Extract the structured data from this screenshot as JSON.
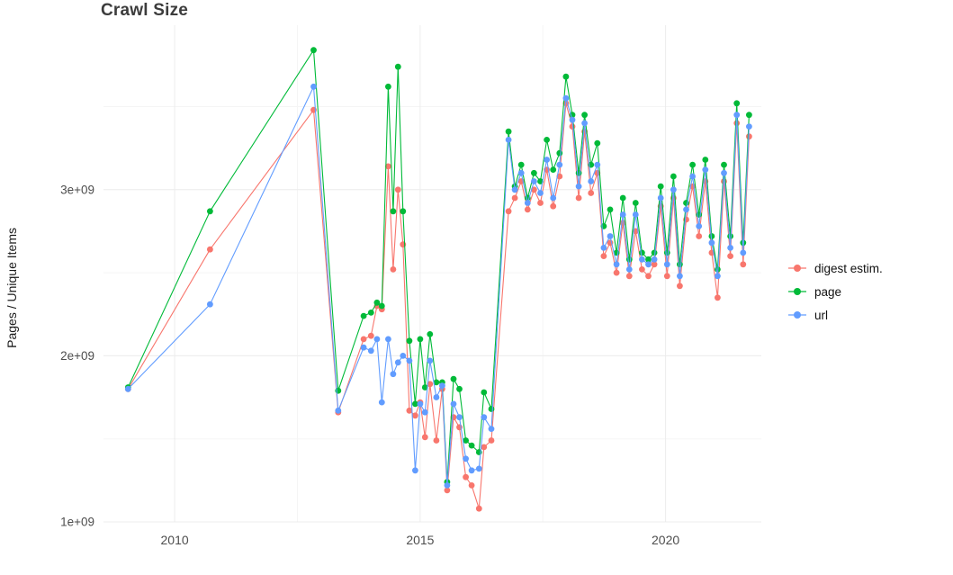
{
  "chart_data": {
    "type": "line",
    "title": "Crawl Size",
    "xlabel": "",
    "ylabel": "Pages / Unique Items",
    "y_unit": "values in billions (1e9)",
    "x_ticks": [
      2010,
      2015,
      2020
    ],
    "x_tick_labels": [
      "2010",
      "2015",
      "2020"
    ],
    "y_ticks": [
      1,
      2,
      3
    ],
    "y_tick_labels": [
      "1e+09",
      "2e+09",
      "3e+09"
    ],
    "xlim": [
      2008.55,
      2021.95
    ],
    "ylim": [
      1.0,
      3.99
    ],
    "grid": true,
    "grid_x_minor": [
      2012.5,
      2017.5
    ],
    "grid_y_minor": [
      1.5,
      2.5,
      3.5
    ],
    "legend_position": "right",
    "marker": "circle",
    "series": [
      {
        "name": "digest estim.",
        "color": "#F8766D",
        "points": [
          [
            2009.05,
            1.8
          ],
          [
            2010.72,
            2.64
          ],
          [
            2012.83,
            3.48
          ],
          [
            2013.33,
            1.66
          ],
          [
            2013.85,
            2.1
          ],
          [
            2014.0,
            2.12
          ],
          [
            2014.12,
            2.3
          ],
          [
            2014.22,
            2.28
          ],
          [
            2014.35,
            3.14
          ],
          [
            2014.45,
            2.52
          ],
          [
            2014.55,
            3.0
          ],
          [
            2014.65,
            2.67
          ],
          [
            2014.78,
            1.67
          ],
          [
            2014.9,
            1.64
          ],
          [
            2015.0,
            1.72
          ],
          [
            2015.1,
            1.51
          ],
          [
            2015.2,
            1.83
          ],
          [
            2015.33,
            1.49
          ],
          [
            2015.45,
            1.8
          ],
          [
            2015.55,
            1.19
          ],
          [
            2015.68,
            1.63
          ],
          [
            2015.8,
            1.57
          ],
          [
            2015.93,
            1.27
          ],
          [
            2016.05,
            1.22
          ],
          [
            2016.2,
            1.08
          ],
          [
            2016.3,
            1.45
          ],
          [
            2016.45,
            1.49
          ],
          [
            2016.8,
            2.87
          ],
          [
            2016.93,
            2.95
          ],
          [
            2017.06,
            3.05
          ],
          [
            2017.19,
            2.88
          ],
          [
            2017.32,
            3.0
          ],
          [
            2017.45,
            2.92
          ],
          [
            2017.58,
            3.12
          ],
          [
            2017.71,
            2.9
          ],
          [
            2017.84,
            3.08
          ],
          [
            2017.97,
            3.52
          ],
          [
            2018.1,
            3.38
          ],
          [
            2018.23,
            2.95
          ],
          [
            2018.35,
            3.35
          ],
          [
            2018.48,
            2.98
          ],
          [
            2018.61,
            3.1
          ],
          [
            2018.74,
            2.6
          ],
          [
            2018.87,
            2.68
          ],
          [
            2019.0,
            2.5
          ],
          [
            2019.13,
            2.8
          ],
          [
            2019.26,
            2.48
          ],
          [
            2019.39,
            2.75
          ],
          [
            2019.52,
            2.52
          ],
          [
            2019.65,
            2.48
          ],
          [
            2019.77,
            2.55
          ],
          [
            2019.9,
            2.9
          ],
          [
            2020.03,
            2.48
          ],
          [
            2020.16,
            2.95
          ],
          [
            2020.29,
            2.42
          ],
          [
            2020.42,
            2.82
          ],
          [
            2020.55,
            3.02
          ],
          [
            2020.68,
            2.72
          ],
          [
            2020.81,
            3.05
          ],
          [
            2020.94,
            2.62
          ],
          [
            2021.06,
            2.35
          ],
          [
            2021.19,
            3.05
          ],
          [
            2021.32,
            2.6
          ],
          [
            2021.45,
            3.4
          ],
          [
            2021.58,
            2.55
          ],
          [
            2021.7,
            3.32
          ]
        ]
      },
      {
        "name": "page",
        "color": "#00BA38",
        "points": [
          [
            2009.05,
            1.81
          ],
          [
            2010.72,
            2.87
          ],
          [
            2012.83,
            3.84
          ],
          [
            2013.33,
            1.79
          ],
          [
            2013.85,
            2.24
          ],
          [
            2014.0,
            2.26
          ],
          [
            2014.12,
            2.32
          ],
          [
            2014.22,
            2.3
          ],
          [
            2014.35,
            3.62
          ],
          [
            2014.45,
            2.87
          ],
          [
            2014.55,
            3.74
          ],
          [
            2014.65,
            2.87
          ],
          [
            2014.78,
            2.09
          ],
          [
            2014.9,
            1.71
          ],
          [
            2015.0,
            2.1
          ],
          [
            2015.1,
            1.81
          ],
          [
            2015.2,
            2.13
          ],
          [
            2015.33,
            1.84
          ],
          [
            2015.45,
            1.84
          ],
          [
            2015.55,
            1.24
          ],
          [
            2015.68,
            1.86
          ],
          [
            2015.8,
            1.8
          ],
          [
            2015.93,
            1.49
          ],
          [
            2016.05,
            1.46
          ],
          [
            2016.2,
            1.42
          ],
          [
            2016.3,
            1.78
          ],
          [
            2016.45,
            1.68
          ],
          [
            2016.8,
            3.35
          ],
          [
            2016.93,
            3.02
          ],
          [
            2017.06,
            3.15
          ],
          [
            2017.19,
            2.95
          ],
          [
            2017.32,
            3.1
          ],
          [
            2017.45,
            3.05
          ],
          [
            2017.58,
            3.3
          ],
          [
            2017.71,
            3.12
          ],
          [
            2017.84,
            3.22
          ],
          [
            2017.97,
            3.68
          ],
          [
            2018.1,
            3.45
          ],
          [
            2018.23,
            3.1
          ],
          [
            2018.35,
            3.45
          ],
          [
            2018.48,
            3.15
          ],
          [
            2018.61,
            3.28
          ],
          [
            2018.74,
            2.78
          ],
          [
            2018.87,
            2.88
          ],
          [
            2019.0,
            2.62
          ],
          [
            2019.13,
            2.95
          ],
          [
            2019.26,
            2.58
          ],
          [
            2019.39,
            2.92
          ],
          [
            2019.52,
            2.62
          ],
          [
            2019.65,
            2.58
          ],
          [
            2019.77,
            2.62
          ],
          [
            2019.9,
            3.02
          ],
          [
            2020.03,
            2.62
          ],
          [
            2020.16,
            3.08
          ],
          [
            2020.29,
            2.55
          ],
          [
            2020.42,
            2.92
          ],
          [
            2020.55,
            3.15
          ],
          [
            2020.68,
            2.85
          ],
          [
            2020.81,
            3.18
          ],
          [
            2020.94,
            2.72
          ],
          [
            2021.06,
            2.52
          ],
          [
            2021.19,
            3.15
          ],
          [
            2021.32,
            2.72
          ],
          [
            2021.45,
            3.52
          ],
          [
            2021.58,
            2.68
          ],
          [
            2021.7,
            3.45
          ]
        ]
      },
      {
        "name": "url",
        "color": "#619CFF",
        "points": [
          [
            2009.05,
            1.8
          ],
          [
            2010.72,
            2.31
          ],
          [
            2012.83,
            3.62
          ],
          [
            2013.33,
            1.67
          ],
          [
            2013.85,
            2.05
          ],
          [
            2014.0,
            2.03
          ],
          [
            2014.12,
            2.1
          ],
          [
            2014.22,
            1.72
          ],
          [
            2014.35,
            2.1
          ],
          [
            2014.45,
            1.89
          ],
          [
            2014.55,
            1.96
          ],
          [
            2014.65,
            2.0
          ],
          [
            2014.78,
            1.97
          ],
          [
            2014.9,
            1.31
          ],
          [
            2015.0,
            1.71
          ],
          [
            2015.1,
            1.66
          ],
          [
            2015.2,
            1.97
          ],
          [
            2015.33,
            1.75
          ],
          [
            2015.45,
            1.82
          ],
          [
            2015.55,
            1.22
          ],
          [
            2015.68,
            1.71
          ],
          [
            2015.8,
            1.63
          ],
          [
            2015.93,
            1.38
          ],
          [
            2016.05,
            1.31
          ],
          [
            2016.2,
            1.32
          ],
          [
            2016.3,
            1.63
          ],
          [
            2016.45,
            1.56
          ],
          [
            2016.8,
            3.3
          ],
          [
            2016.93,
            3.0
          ],
          [
            2017.06,
            3.1
          ],
          [
            2017.19,
            2.92
          ],
          [
            2017.32,
            3.05
          ],
          [
            2017.45,
            2.98
          ],
          [
            2017.58,
            3.18
          ],
          [
            2017.71,
            2.95
          ],
          [
            2017.84,
            3.15
          ],
          [
            2017.97,
            3.55
          ],
          [
            2018.1,
            3.42
          ],
          [
            2018.23,
            3.02
          ],
          [
            2018.35,
            3.4
          ],
          [
            2018.48,
            3.05
          ],
          [
            2018.61,
            3.15
          ],
          [
            2018.74,
            2.65
          ],
          [
            2018.87,
            2.72
          ],
          [
            2019.0,
            2.55
          ],
          [
            2019.13,
            2.85
          ],
          [
            2019.26,
            2.52
          ],
          [
            2019.39,
            2.85
          ],
          [
            2019.52,
            2.58
          ],
          [
            2019.65,
            2.55
          ],
          [
            2019.77,
            2.58
          ],
          [
            2019.9,
            2.95
          ],
          [
            2020.03,
            2.55
          ],
          [
            2020.16,
            3.0
          ],
          [
            2020.29,
            2.48
          ],
          [
            2020.42,
            2.88
          ],
          [
            2020.55,
            3.08
          ],
          [
            2020.68,
            2.78
          ],
          [
            2020.81,
            3.12
          ],
          [
            2020.94,
            2.68
          ],
          [
            2021.06,
            2.48
          ],
          [
            2021.19,
            3.1
          ],
          [
            2021.32,
            2.65
          ],
          [
            2021.45,
            3.45
          ],
          [
            2021.58,
            2.62
          ],
          [
            2021.7,
            3.38
          ]
        ]
      }
    ]
  }
}
